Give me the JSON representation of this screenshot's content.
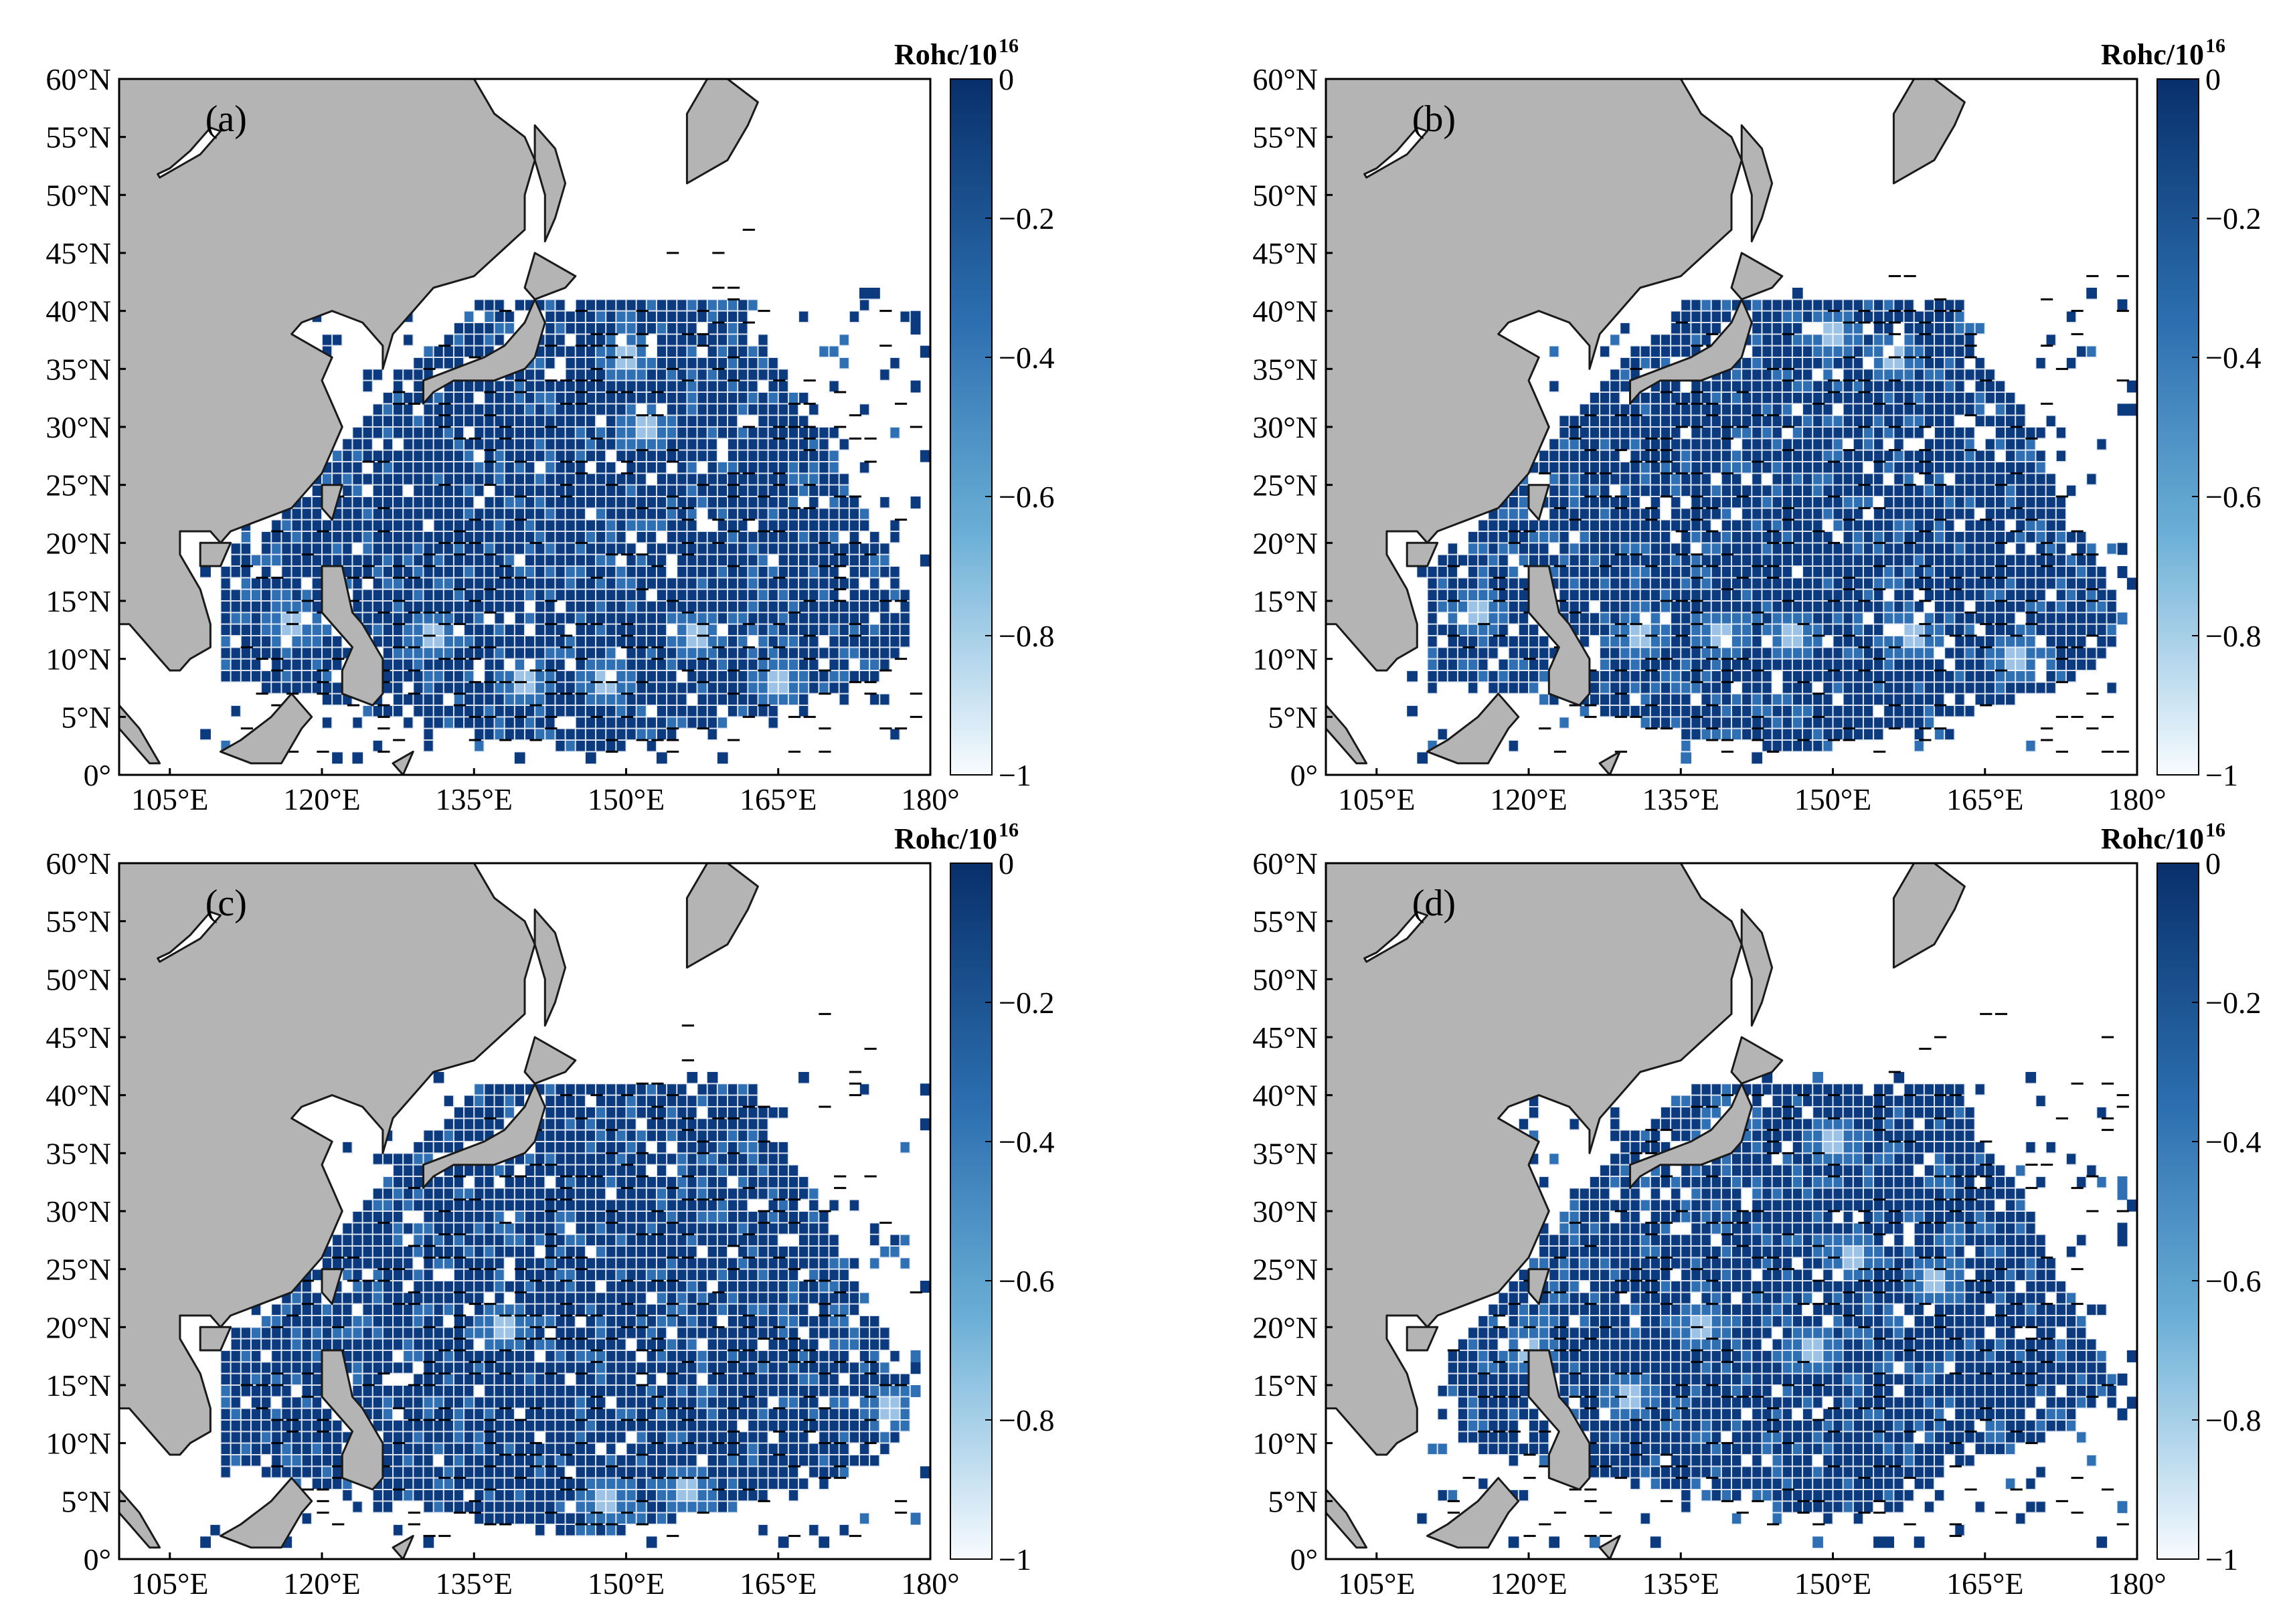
{
  "colors": {
    "land": "#b4b4b4",
    "coast": "#1a1a1a",
    "ocean": "#ffffff",
    "cell_dark": "#0b3a7e",
    "cell_mid": "#2f6fb3",
    "cell_light": "#9cc3e6",
    "grid": "#ffffff",
    "hatch": "#000000"
  },
  "chart_data": [
    {
      "type": "heatmap",
      "label": "(a)",
      "colorbar_title": "Rohc/10",
      "colorbar_exponent": "16",
      "colorbar_ticks": [
        "0",
        "−0.2",
        "−0.4",
        "−0.6",
        "−0.8",
        "−1"
      ],
      "colorbar_range": [
        -1,
        0
      ],
      "x_ticks": [
        "105°E",
        "120°E",
        "135°E",
        "150°E",
        "165°E",
        "180°"
      ],
      "y_ticks": [
        "60°N",
        "55°N",
        "50°N",
        "45°N",
        "40°N",
        "35°N",
        "30°N",
        "25°N",
        "20°N",
        "15°N",
        "10°N",
        "5°N",
        "0°"
      ],
      "lon_range": [
        100,
        180
      ],
      "lat_range": [
        0,
        60
      ],
      "region": [
        [
          110,
          8
        ],
        [
          110,
          18
        ],
        [
          116,
          22
        ],
        [
          121,
          27
        ],
        [
          127,
          33
        ],
        [
          131,
          37
        ],
        [
          136,
          41
        ],
        [
          163,
          41
        ],
        [
          164,
          37
        ],
        [
          168,
          33
        ],
        [
          170,
          29
        ],
        [
          172,
          25
        ],
        [
          174,
          22
        ],
        [
          176,
          19
        ],
        [
          178,
          15
        ],
        [
          178,
          11
        ],
        [
          174,
          8
        ],
        [
          166,
          6
        ],
        [
          158,
          4
        ],
        [
          148,
          2
        ],
        [
          138,
          3
        ],
        [
          128,
          5
        ],
        [
          118,
          7
        ]
      ],
      "light_spots": [
        [
          117,
          13
        ],
        [
          131,
          12
        ],
        [
          140,
          8
        ],
        [
          148,
          8
        ],
        [
          150,
          36
        ],
        [
          152,
          30
        ],
        [
          157,
          12
        ],
        [
          165,
          8
        ]
      ]
    },
    {
      "type": "heatmap",
      "label": "(b)",
      "colorbar_title": "Rohc/10",
      "colorbar_exponent": "16",
      "colorbar_ticks": [
        "0",
        "−0.2",
        "−0.4",
        "−0.6",
        "−0.8",
        "−1"
      ],
      "colorbar_range": [
        -1,
        0
      ],
      "x_ticks": [
        "105°E",
        "120°E",
        "135°E",
        "150°E",
        "165°E",
        "180°"
      ],
      "y_ticks": [
        "60°N",
        "55°N",
        "50°N",
        "45°N",
        "40°N",
        "35°N",
        "30°N",
        "25°N",
        "20°N",
        "15°N",
        "10°N",
        "5°N",
        "0°"
      ],
      "lon_range": [
        100,
        180
      ],
      "lat_range": [
        0,
        60
      ],
      "region": [
        [
          110,
          8
        ],
        [
          110,
          18
        ],
        [
          116,
          22
        ],
        [
          121,
          27
        ],
        [
          127,
          33
        ],
        [
          131,
          37
        ],
        [
          136,
          41
        ],
        [
          163,
          41
        ],
        [
          164,
          37
        ],
        [
          168,
          33
        ],
        [
          170,
          29
        ],
        [
          172,
          25
        ],
        [
          174,
          22
        ],
        [
          176,
          19
        ],
        [
          178,
          15
        ],
        [
          178,
          11
        ],
        [
          174,
          8
        ],
        [
          166,
          6
        ],
        [
          158,
          4
        ],
        [
          148,
          2
        ],
        [
          138,
          3
        ],
        [
          128,
          5
        ],
        [
          118,
          7
        ]
      ],
      "light_spots": [
        [
          115,
          14
        ],
        [
          131,
          12
        ],
        [
          139,
          12
        ],
        [
          146,
          12
        ],
        [
          150,
          38
        ],
        [
          156,
          36
        ],
        [
          158,
          12
        ],
        [
          168,
          10
        ]
      ]
    },
    {
      "type": "heatmap",
      "label": "(c)",
      "colorbar_title": "Rohc/10",
      "colorbar_exponent": "16",
      "colorbar_ticks": [
        "0",
        "−0.2",
        "−0.4",
        "−0.6",
        "−0.8",
        "−1"
      ],
      "colorbar_range": [
        -1,
        0
      ],
      "x_ticks": [
        "105°E",
        "120°E",
        "135°E",
        "150°E",
        "165°E",
        "180°"
      ],
      "y_ticks": [
        "60°N",
        "55°N",
        "50°N",
        "45°N",
        "40°N",
        "35°N",
        "30°N",
        "25°N",
        "20°N",
        "15°N",
        "10°N",
        "5°N",
        "0°"
      ],
      "lon_range": [
        100,
        180
      ],
      "lat_range": [
        0,
        60
      ],
      "region": [
        [
          110,
          8
        ],
        [
          110,
          18
        ],
        [
          116,
          22
        ],
        [
          121,
          27
        ],
        [
          127,
          33
        ],
        [
          131,
          37
        ],
        [
          136,
          41
        ],
        [
          163,
          41
        ],
        [
          164,
          37
        ],
        [
          168,
          33
        ],
        [
          170,
          29
        ],
        [
          172,
          25
        ],
        [
          174,
          22
        ],
        [
          176,
          19
        ],
        [
          178,
          15
        ],
        [
          178,
          11
        ],
        [
          174,
          8
        ],
        [
          166,
          6
        ],
        [
          158,
          4
        ],
        [
          148,
          2
        ],
        [
          138,
          3
        ],
        [
          128,
          5
        ],
        [
          118,
          7
        ]
      ],
      "light_spots": [
        [
          148,
          5
        ],
        [
          156,
          6
        ],
        [
          176,
          13
        ],
        [
          138,
          20
        ]
      ]
    },
    {
      "type": "heatmap",
      "label": "(d)",
      "colorbar_title": "Rohc/10",
      "colorbar_exponent": "16",
      "colorbar_ticks": [
        "0",
        "−0.2",
        "−0.4",
        "−0.6",
        "−0.8",
        "−1"
      ],
      "colorbar_range": [
        -1,
        0
      ],
      "x_ticks": [
        "105°E",
        "120°E",
        "135°E",
        "150°E",
        "165°E",
        "180°"
      ],
      "y_ticks": [
        "60°N",
        "55°N",
        "50°N",
        "45°N",
        "40°N",
        "35°N",
        "30°N",
        "25°N",
        "20°N",
        "15°N",
        "10°N",
        "5°N",
        "0°"
      ],
      "lon_range": [
        100,
        180
      ],
      "lat_range": [
        0,
        60
      ],
      "region": [
        [
          113,
          10
        ],
        [
          112,
          18
        ],
        [
          118,
          23
        ],
        [
          121,
          27
        ],
        [
          127,
          33
        ],
        [
          131,
          37
        ],
        [
          136,
          41
        ],
        [
          163,
          41
        ],
        [
          164,
          37
        ],
        [
          168,
          33
        ],
        [
          170,
          29
        ],
        [
          172,
          25
        ],
        [
          174,
          22
        ],
        [
          176,
          19
        ],
        [
          178,
          15
        ],
        [
          176,
          12
        ],
        [
          170,
          10
        ],
        [
          162,
          8
        ],
        [
          156,
          4
        ],
        [
          148,
          4
        ],
        [
          140,
          5
        ],
        [
          130,
          7
        ],
        [
          120,
          8
        ]
      ],
      "light_spots": [
        [
          137,
          20
        ],
        [
          148,
          18
        ],
        [
          152,
          26
        ],
        [
          160,
          24
        ],
        [
          140,
          38
        ],
        [
          150,
          36
        ],
        [
          130,
          14
        ],
        [
          120,
          18
        ]
      ]
    }
  ]
}
